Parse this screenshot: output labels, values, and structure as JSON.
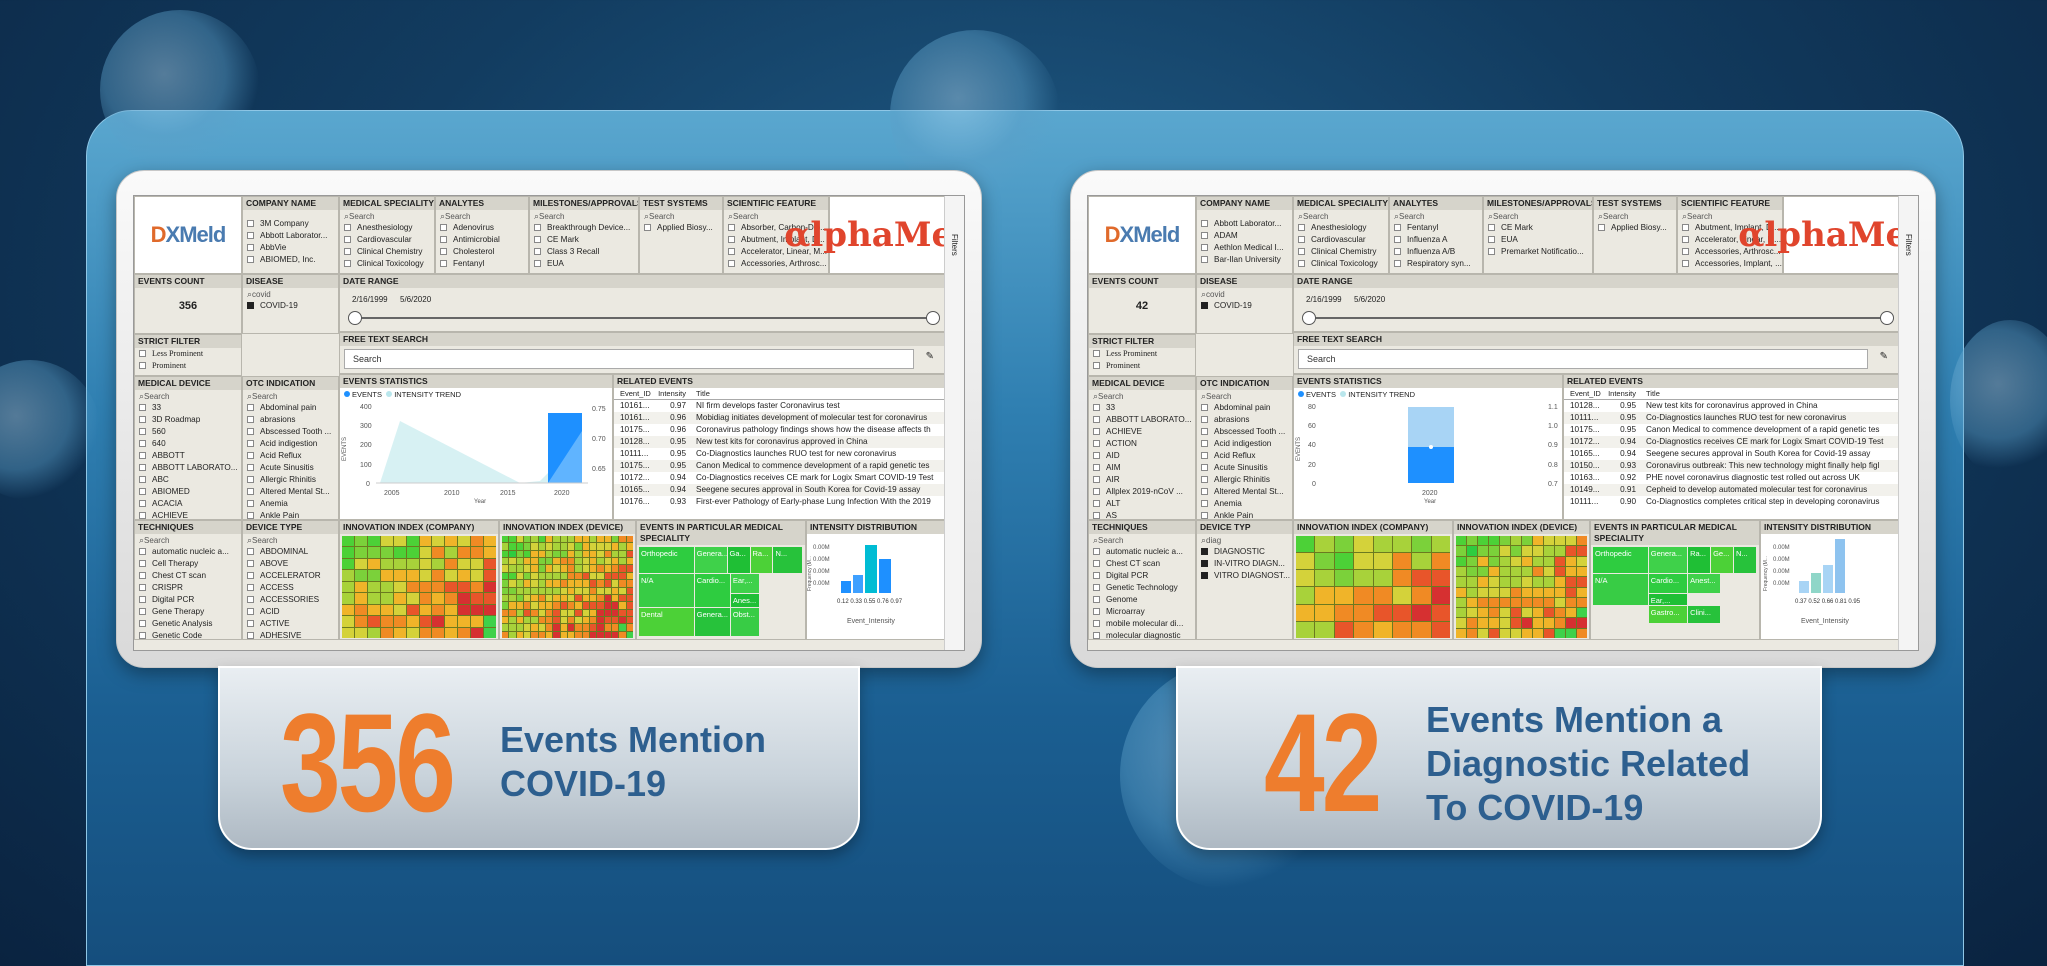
{
  "left": {
    "company_name": {
      "header": "COMPANY NAME",
      "items": [
        "3M Company",
        "Abbott Laborator...",
        "AbbVie",
        "ABIOMED, Inc."
      ]
    },
    "medical_speciality": {
      "header": "MEDICAL SPECIALITY",
      "search": "Search",
      "items": [
        "Anesthesiology",
        "Cardiovascular",
        "Clinical Chemistry",
        "Clinical Toxicology"
      ]
    },
    "analytes": {
      "header": "ANALYTES",
      "search": "Search",
      "items": [
        "Adenovirus",
        "Antimicrobial",
        "Cholesterol",
        "Fentanyl"
      ]
    },
    "milestones": {
      "header": "MILESTONES/APPROVALS",
      "search": "Search",
      "items": [
        "Breakthrough Device...",
        "CE Mark",
        "Class 3 Recall",
        "EUA"
      ]
    },
    "test_systems": {
      "header": "TEST SYSTEMS",
      "search": "Search",
      "items": [
        "Applied Biosy..."
      ]
    },
    "scientific_feature": {
      "header": "SCIENTIFIC FEATURE",
      "search": "Search",
      "items": [
        "Absorber, Carbon-Dio...",
        "Abutment, Implant, D...",
        "Accelerator, Linear, M...",
        "Accessories, Arthrosc..."
      ]
    },
    "events_count": {
      "header": "EVENTS COUNT",
      "value": "356"
    },
    "disease": {
      "header": "DISEASE",
      "search": "covid",
      "items": [
        "COVID-19"
      ]
    },
    "date_range": {
      "header": "DATE RANGE",
      "start": "2/16/1999",
      "end": "5/6/2020"
    },
    "strict_filter": {
      "header": "STRICT FILTER",
      "items": [
        "Less Prominent",
        "Prominent"
      ]
    },
    "free_text": {
      "header": "FREE TEXT SEARCH",
      "placeholder": "Search"
    },
    "medical_device": {
      "header": "MEDICAL DEVICE",
      "search": "Search",
      "items": [
        "33",
        "3D Roadmap",
        "560",
        "640",
        "ABBOTT",
        "ABBOTT LABORATO...",
        "ABC",
        "ABIOMED",
        "ACACIA",
        "ACHIEVE"
      ]
    },
    "otc_indication": {
      "header": "OTC INDICATION",
      "search": "Search",
      "items": [
        "Abdominal pain",
        "abrasions",
        "Abscessed Tooth ...",
        "Acid indigestion",
        "Acid Reflux",
        "Acute Sinusitis",
        "Allergic Rhinitis",
        "Altered Mental St...",
        "Anemia",
        "Ankle Pain"
      ]
    },
    "events_statistics": {
      "header": "EVENTS STATISTICS",
      "legend_events": "EVENTS",
      "legend_trend": "INTENSITY TREND",
      "y_ticks": [
        "400",
        "300",
        "200",
        "100",
        "0"
      ],
      "y2_ticks": [
        "0.75",
        "0.70",
        "0.65"
      ],
      "x_ticks": [
        "2005",
        "2010",
        "2015",
        "2020"
      ],
      "xlabel": "Year",
      "ylabel": "EVENTS"
    },
    "related_events": {
      "header": "RELATED EVENTS",
      "cols": [
        "Event_ID",
        "Intensity",
        "Title"
      ],
      "rows": [
        [
          "10161...",
          "0.97",
          "NI firm develops faster Coronavirus test"
        ],
        [
          "10161...",
          "0.96",
          "Mobidiag initiates development of molecular test for coronavirus"
        ],
        [
          "10175...",
          "0.96",
          "Coronavirus pathology findings shows how the disease affects th"
        ],
        [
          "10128...",
          "0.95",
          "New test kits for coronavirus approved in China"
        ],
        [
          "10111...",
          "0.95",
          "Co-Diagnostics launches RUO test for new coronavirus"
        ],
        [
          "10175...",
          "0.95",
          "Canon Medical to commence development of a rapid genetic tes"
        ],
        [
          "10172...",
          "0.94",
          "Co-Diagnostics receives CE mark for Logix Smart COVID-19 Test"
        ],
        [
          "10165...",
          "0.94",
          "Seegene secures approval in South Korea for Covid-19 assay"
        ],
        [
          "10176...",
          "0.93",
          "First-ever Pathology of Early-phase Lung Infection With the 2019"
        ]
      ]
    },
    "techniques": {
      "header": "TECHNIQUES",
      "search": "Search",
      "items": [
        "automatic nucleic a...",
        "Cell Therapy",
        "Chest CT scan",
        "CRISPR",
        "Digital PCR",
        "Gene Therapy",
        "Genetic Analysis",
        "Genetic Code"
      ]
    },
    "device_type": {
      "header": "DEVICE TYPE",
      "search": "Search",
      "items": [
        "ABDOMINAL",
        "ABOVE",
        "ACCELERATOR",
        "ACCESS",
        "ACCESSORIES",
        "ACID",
        "ACTIVE",
        "ADHESIVE"
      ]
    },
    "innov_company": {
      "header": "INNOVATION INDEX (COMPANY)"
    },
    "innov_device": {
      "header": "INNOVATION INDEX (DEVICE)"
    },
    "events_specialty": {
      "header": "EVENTS IN PARTICULAR MEDICAL SPECIALITY",
      "tiles": [
        "Orthopedic",
        "Genera...",
        "Ga...",
        "Ra...",
        "N...",
        "N/A",
        "Cardio...",
        "Ear,...",
        "Anes...",
        "Dental",
        "Genera...",
        "Obst..."
      ]
    },
    "intensity_dist": {
      "header": "INTENSITY DISTRIBUTION",
      "y_ticks": [
        "0.00M",
        "0.00M",
        "0.00M",
        "0.00M"
      ],
      "x_ticks": "0.12 0.33 0.55 0.76 0.97",
      "xlabel": "Event_Intensity",
      "ylabel": "Frequency (M..."
    },
    "filters_label": "Filters"
  },
  "right": {
    "company_name": {
      "header": "COMPANY NAME",
      "items": [
        "Abbott Laborator...",
        "ADAM",
        "Aethlon Medical I...",
        "Bar-Ilan University"
      ]
    },
    "medical_speciality": {
      "header": "MEDICAL SPECIALITY",
      "search": "Search",
      "items": [
        "Anesthesiology",
        "Cardiovascular",
        "Clinical Chemistry",
        "Clinical Toxicology"
      ]
    },
    "analytes": {
      "header": "ANALYTES",
      "search": "Search",
      "items": [
        "Fentanyl",
        "Influenza A",
        "Influenza A/B",
        "Respiratory syn..."
      ]
    },
    "milestones": {
      "header": "MILESTONES/APPROVALS",
      "search": "Search",
      "items": [
        "CE Mark",
        "EUA",
        "Premarket Notificatio..."
      ]
    },
    "test_systems": {
      "header": "TEST SYSTEMS",
      "search": "Search",
      "items": [
        "Applied Biosy..."
      ]
    },
    "scientific_feature": {
      "header": "SCIENTIFIC FEATURE",
      "search": "Search",
      "items": [
        "Abutment, Implant, D...",
        "Accelerator, Linear, M...",
        "Accessories, Arthrosc...",
        "Accessories, Implant, ..."
      ]
    },
    "events_count": {
      "header": "EVENTS COUNT",
      "value": "42"
    },
    "disease": {
      "header": "DISEASE",
      "search": "covid",
      "items": [
        "COVID-19"
      ]
    },
    "date_range": {
      "header": "DATE RANGE",
      "start": "2/16/1999",
      "end": "5/6/2020"
    },
    "strict_filter": {
      "header": "STRICT FILTER",
      "items": [
        "Less Prominent",
        "Prominent"
      ]
    },
    "free_text": {
      "header": "FREE TEXT SEARCH",
      "placeholder": "Search"
    },
    "medical_device": {
      "header": "MEDICAL DEVICE",
      "search": "Search",
      "items": [
        "33",
        "ABBOTT LABORATO...",
        "ACHIEVE",
        "ACTION",
        "AID",
        "AIM",
        "AIR",
        "Allplex 2019-nCoV ...",
        "ALT",
        "AS"
      ]
    },
    "otc_indication": {
      "header": "OTC INDICATION",
      "search": "Search",
      "items": [
        "Abdominal pain",
        "abrasions",
        "Abscessed Tooth ...",
        "Acid indigestion",
        "Acid Reflux",
        "Acute Sinusitis",
        "Allergic Rhinitis",
        "Altered Mental St...",
        "Anemia",
        "Ankle Pain"
      ]
    },
    "events_statistics": {
      "header": "EVENTS STATISTICS",
      "legend_events": "EVENTS",
      "legend_trend": "INTENSITY TREND",
      "y_ticks": [
        "80",
        "60",
        "40",
        "20",
        "0"
      ],
      "y2_ticks": [
        "1.1",
        "1.0",
        "0.9",
        "0.8",
        "0.7"
      ],
      "x_ticks": [
        "2020"
      ],
      "xlabel": "Year",
      "ylabel": "EVENTS"
    },
    "related_events": {
      "header": "RELATED EVENTS",
      "cols": [
        "Event_ID",
        "Intensity",
        "Title"
      ],
      "rows": [
        [
          "10128...",
          "0.95",
          "New test kits for coronavirus approved in China"
        ],
        [
          "10111...",
          "0.95",
          "Co-Diagnostics launches RUO test for new coronavirus"
        ],
        [
          "10175...",
          "0.95",
          "Canon Medical to commence development of a rapid genetic tes"
        ],
        [
          "10172...",
          "0.94",
          "Co-Diagnostics receives CE mark for Logix Smart COVID-19 Test"
        ],
        [
          "10165...",
          "0.94",
          "Seegene secures approval in South Korea for Covid-19 assay"
        ],
        [
          "10150...",
          "0.93",
          "Coronavirus outbreak: This new technology might finally help figl"
        ],
        [
          "10163...",
          "0.92",
          "PHE novel coronavirus diagnostic test rolled out across UK"
        ],
        [
          "10149...",
          "0.91",
          "Cepheid to develop automated molecular test for coronavirus"
        ],
        [
          "10111...",
          "0.90",
          "Co-Diagnostics completes critical step in developing coronavirus"
        ]
      ]
    },
    "techniques": {
      "header": "TECHNIQUES",
      "search": "Search",
      "items": [
        "automatic nucleic a...",
        "Chest CT scan",
        "Digital PCR",
        "Genetic Technology",
        "Genome",
        "Microarray",
        "mobile molecular di...",
        "molecular diagnostic"
      ]
    },
    "device_type": {
      "header": "DEVICE TYP",
      "search": "diag",
      "items": [
        "DIAGNOSTIC",
        "IN-VITRO DIAGN...",
        "VITRO DIAGNOST..."
      ]
    },
    "innov_company": {
      "header": "INNOVATION INDEX (COMPANY)"
    },
    "innov_device": {
      "header": "INNOVATION INDEX (DEVICE)"
    },
    "events_specialty": {
      "header": "EVENTS IN PARTICULAR MEDICAL SPECIALITY",
      "tiles": [
        "Orthopedic",
        "Genera...",
        "Ra...",
        "Ge...",
        "N...",
        "N/A",
        "Cardio...",
        "Anest...",
        "Ear,...",
        "Gastro...",
        "Clini..."
      ]
    },
    "intensity_dist": {
      "header": "INTENSITY DISTRIBUTION",
      "y_ticks": [
        "0.00M",
        "0.00M",
        "0.00M",
        "0.00M"
      ],
      "x_ticks": "0.37 0.52 0.66 0.81 0.95",
      "xlabel": "Event_Intensity",
      "ylabel": "Frequency (M..."
    },
    "filters_label": "Filters"
  },
  "logos": {
    "dx_a": "D",
    "dx_b": "X",
    "dx_c": "Meld",
    "alpha_sym": "α",
    "alpha_text": "lphaMeld"
  },
  "stat_left": {
    "number": "356",
    "line1": "Events Mention",
    "line2": "COVID-19"
  },
  "stat_right": {
    "number": "42",
    "line1": "Events Mention a",
    "line2": "Diagnostic Related",
    "line3": "To COVID-19"
  },
  "colors": {
    "accent_orange": "#ee7d2d",
    "text_blue": "#2d5f8f",
    "bar_blue": "#1e90ff"
  }
}
